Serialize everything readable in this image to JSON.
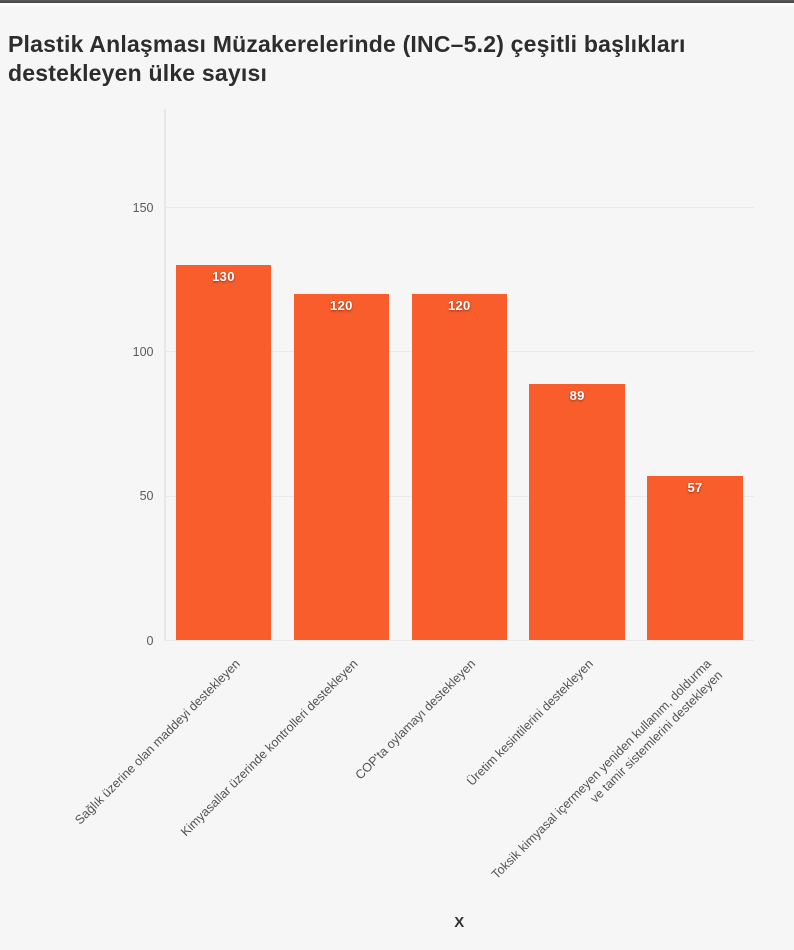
{
  "page": {
    "background_color": "#f6f6f6",
    "topbar_color": "#4e4e4e"
  },
  "title": {
    "line1": "Plastik Anlaşması Müzakerelerinde (INC–5.2) çeşitli başlıkları",
    "line2": "destekleyen ülke sayısı"
  },
  "chart_data": {
    "type": "bar",
    "title": "Plastik Anlaşması Müzakerelerinde (INC–5.2) çeşitli başlıkları destekleyen ülke sayısı",
    "categories": [
      "Sağlık üzerine olan maddeyi destekleyen",
      "Kimyasallar üzerinde kontrolleri destekleyen",
      "COP'ta oylamayı destekleyen",
      "Üretim kesintilerini destekleyen",
      "Toksik kimyasal içermeyen yeniden kullanım, doldurma\nve tamir sistemlerini destekleyen"
    ],
    "values": [
      130,
      120,
      120,
      89,
      57
    ],
    "value_labels": [
      "130",
      "120",
      "120",
      "89",
      "57"
    ],
    "xlabel": "X",
    "ylabel": "",
    "yticks": [
      0,
      50,
      100,
      150
    ],
    "ylim": [
      0,
      185
    ],
    "bar_color": "#fa5d2c",
    "value_label_color": "#ffffff",
    "grid": "horizontal gridlines at yticks",
    "legend": "none"
  }
}
